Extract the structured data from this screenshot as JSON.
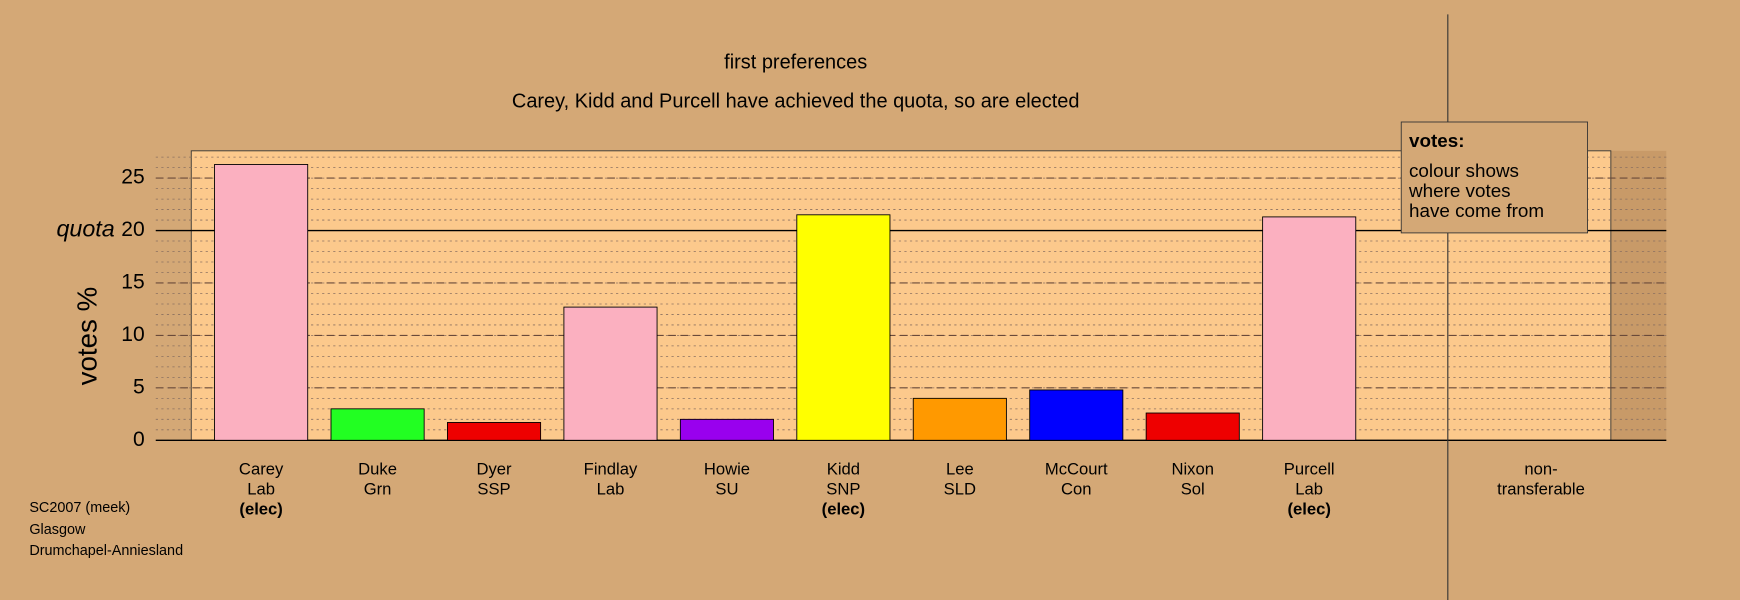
{
  "chart_data": {
    "type": "bar",
    "title": "first preferences",
    "subtitle": "Carey, Kidd and Purcell have achieved the quota, so are elected",
    "y_label": "votes %",
    "category_labels": [
      [
        "Carey",
        "Lab",
        "(elec)"
      ],
      [
        "Duke",
        "Grn"
      ],
      [
        "Dyer",
        "SSP"
      ],
      [
        "Findlay",
        "Lab"
      ],
      [
        "Howie",
        "SU"
      ],
      [
        "Kidd",
        "SNP",
        "(elec)"
      ],
      [
        "Lee",
        "SLD"
      ],
      [
        "McCourt",
        "Con"
      ],
      [
        "Nixon",
        "Sol"
      ],
      [
        "Purcell",
        "Lab",
        "(elec)"
      ],
      [
        "non-",
        "transferable"
      ]
    ],
    "values": [
      26.3,
      3.0,
      1.7,
      12.7,
      2.0,
      21.5,
      4.0,
      4.8,
      2.6,
      21.3,
      0
    ],
    "colors": [
      "#fbb0c0",
      "#22ff22",
      "#ee0000",
      "#fbb0c0",
      "#9900ee",
      "#ffff00",
      "#ff9900",
      "#0000ff",
      "#ee0000",
      "#fbb0c0",
      "#fbb0c0"
    ],
    "ylim": [
      0,
      27.6
    ],
    "yticks": [
      0,
      5,
      10,
      15,
      25
    ],
    "quota": {
      "value": 20,
      "label": "quota",
      "tick_label": "20"
    },
    "minor_grid_step": 1,
    "legend": {
      "title": "votes:",
      "lines": [
        "colour shows",
        "where votes",
        "have come from"
      ]
    },
    "footer": [
      "SC2007 (meek)",
      "Glasgow",
      "Drumchapel-Anniesland"
    ]
  }
}
